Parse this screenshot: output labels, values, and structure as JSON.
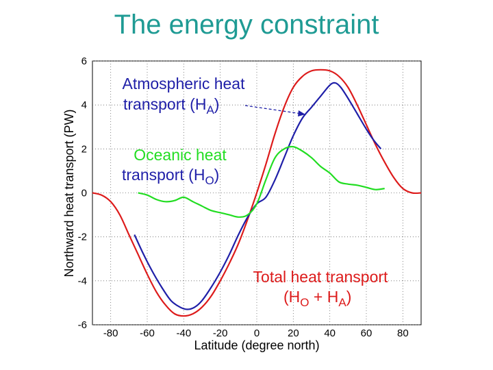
{
  "title": "The energy constraint",
  "chart_data": {
    "type": "line",
    "xlabel": "Latitude (degree north)",
    "ylabel": "Northward heat transport (PW)",
    "xlim": [
      -90,
      90
    ],
    "ylim": [
      -6,
      6
    ],
    "xticks": [
      -80,
      -60,
      -40,
      -20,
      0,
      20,
      40,
      60,
      80
    ],
    "yticks": [
      -6,
      -4,
      -2,
      0,
      2,
      4,
      6
    ],
    "grid": true,
    "series": [
      {
        "key": "total",
        "color": "#dd1b1b",
        "x": [
          -90,
          -85,
          -80,
          -75,
          -70,
          -65,
          -60,
          -55,
          -50,
          -45,
          -40,
          -35,
          -30,
          -25,
          -20,
          -15,
          -10,
          -5,
          0,
          5,
          10,
          15,
          20,
          25,
          30,
          35,
          40,
          45,
          50,
          55,
          60,
          65,
          70,
          75,
          80,
          85,
          90
        ],
        "y": [
          0,
          -0.1,
          -0.4,
          -1.0,
          -1.9,
          -2.8,
          -3.7,
          -4.5,
          -5.1,
          -5.5,
          -5.6,
          -5.5,
          -5.2,
          -4.7,
          -4.0,
          -3.2,
          -2.3,
          -1.2,
          0.0,
          1.3,
          2.7,
          3.9,
          4.8,
          5.3,
          5.55,
          5.6,
          5.55,
          5.3,
          4.8,
          4.0,
          3.1,
          2.2,
          1.4,
          0.7,
          0.2,
          0.0,
          0.0
        ]
      },
      {
        "key": "atmos",
        "color": "#1f1fa8",
        "x": [
          -67,
          -62,
          -57,
          -52,
          -47,
          -42,
          -38,
          -34,
          -30,
          -25,
          -20,
          -15,
          -10,
          -5,
          0,
          5,
          10,
          15,
          20,
          25,
          30,
          35,
          40,
          43,
          46,
          50,
          55,
          60,
          64,
          68
        ],
        "y": [
          -1.9,
          -2.8,
          -3.6,
          -4.3,
          -4.9,
          -5.2,
          -5.3,
          -5.2,
          -4.9,
          -4.3,
          -3.6,
          -2.8,
          -1.9,
          -1.1,
          -0.5,
          -0.2,
          0.6,
          1.6,
          2.6,
          3.4,
          3.9,
          4.4,
          4.9,
          5.0,
          4.8,
          4.3,
          3.6,
          2.9,
          2.4,
          2.0
        ]
      },
      {
        "key": "ocean",
        "color": "#22dd22",
        "x": [
          -65,
          -60,
          -55,
          -50,
          -45,
          -40,
          -35,
          -30,
          -25,
          -20,
          -15,
          -10,
          -5,
          0,
          5,
          10,
          15,
          20,
          25,
          30,
          35,
          40,
          45,
          50,
          55,
          60,
          65,
          70
        ],
        "y": [
          0.0,
          -0.1,
          -0.3,
          -0.4,
          -0.35,
          -0.2,
          -0.4,
          -0.6,
          -0.8,
          -0.9,
          -1.0,
          -1.1,
          -1.0,
          -0.5,
          0.6,
          1.6,
          2.0,
          2.1,
          1.9,
          1.6,
          1.2,
          0.9,
          0.5,
          0.4,
          0.35,
          0.25,
          0.15,
          0.2
        ]
      }
    ],
    "annotations": {
      "atmos_line1": "Atmospheric heat",
      "atmos_line2": "transport (H",
      "atmos_sub": "A",
      "ocean_line1": "Oceanic heat",
      "ocean_line2": "transport (H",
      "ocean_sub": "O",
      "total_line1": "Total heat transport",
      "total_line2a": "(H",
      "total_sub_o": "O",
      "total_plus": " + H",
      "total_sub_a": "A",
      "close_paren": ")"
    }
  }
}
